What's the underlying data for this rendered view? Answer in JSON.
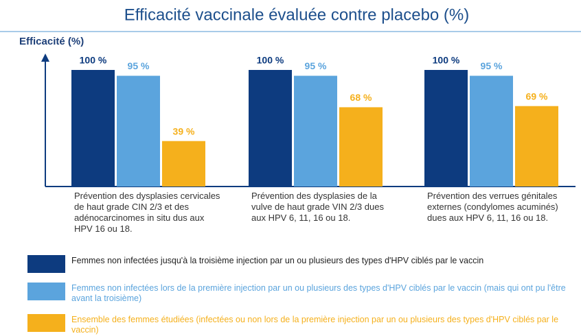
{
  "chart_data": {
    "type": "bar",
    "title": "Efficacité vaccinale évaluée contre placebo (%)",
    "y_label": "Efficacité (%)",
    "categories": [
      "Prévention des dysplasies cervicales de haut grade CIN 2/3 et des adénocarcinomes in situ dus aux HPV 16 ou 18.",
      "Prévention des dysplasies de la vulve de haut grade VIN 2/3 dues aux HPV 6, 11, 16 ou 18.",
      "Prévention des verrues génitales externes (condylomes acuminés) dues aux HPV 6, 11, 16 ou 18."
    ],
    "series": [
      {
        "name": "Femmes non infectées jusqu'à la troisième injection par un ou plusieurs des types d'HPV ciblés par le vaccin",
        "color": "#0d3b7f",
        "values": [
          100,
          100,
          100
        ],
        "value_labels": [
          "100 %",
          "100 %",
          "100 %"
        ]
      },
      {
        "name": "Femmes non infectées lors de la première injection par un ou plusieurs des types d'HPV ciblés par le vaccin (mais qui ont pu l'être avant la troisième)",
        "color": "#5ba4dd",
        "values": [
          95,
          95,
          95
        ],
        "value_labels": [
          "95 %",
          "95 %",
          "95 %"
        ]
      },
      {
        "name": "Ensemble des femmes étudiées (infectées ou non lors de la première injection par un ou plusieurs des types d'HPV ciblés par le vaccin)",
        "color": "#f5b01c",
        "values": [
          39,
          68,
          69
        ],
        "value_labels": [
          "39 %",
          "68 %",
          "69 %"
        ]
      }
    ],
    "ylim": [
      0,
      100
    ]
  }
}
